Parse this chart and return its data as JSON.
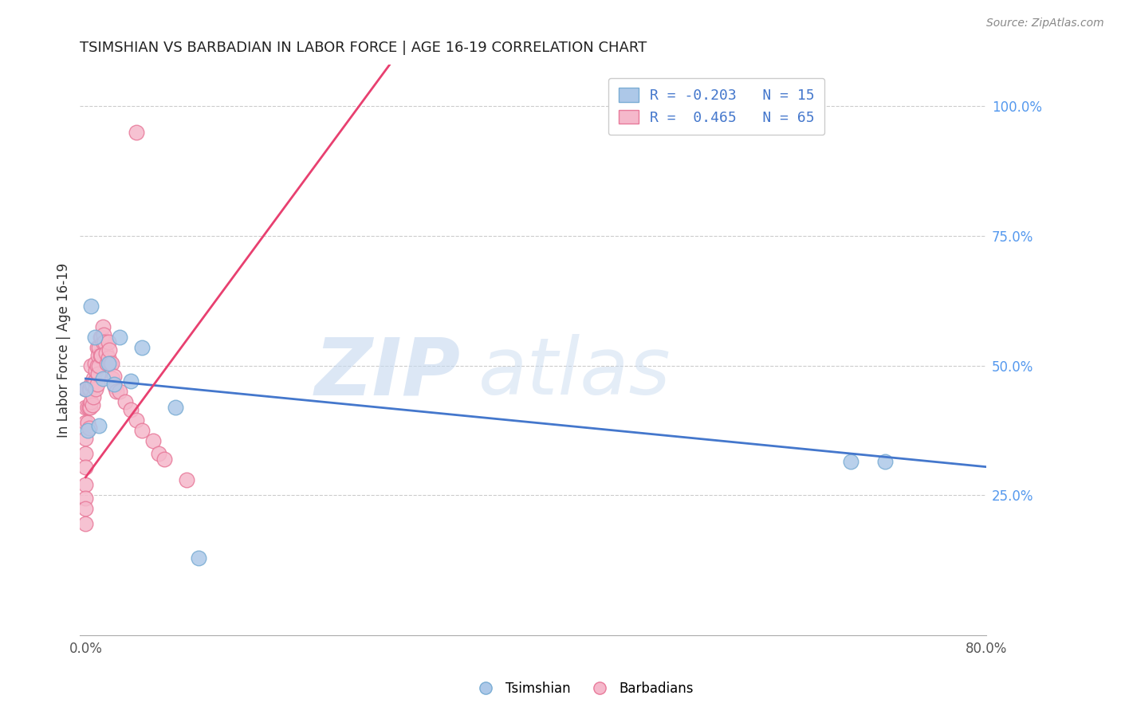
{
  "title": "TSIMSHIAN VS BARBADIAN IN LABOR FORCE | AGE 16-19 CORRELATION CHART",
  "source": "Source: ZipAtlas.com",
  "ylabel": "In Labor Force | Age 16-19",
  "xlim": [
    -0.005,
    0.8
  ],
  "ylim": [
    -0.02,
    1.08
  ],
  "xtick_vals": [
    0.0,
    0.2,
    0.4,
    0.6,
    0.8
  ],
  "xtick_labels": [
    "0.0%",
    "",
    "",
    "",
    "80.0%"
  ],
  "ytick_right_vals": [
    0.25,
    0.5,
    0.75,
    1.0
  ],
  "ytick_right_labels": [
    "25.0%",
    "50.0%",
    "75.0%",
    "100.0%"
  ],
  "legend_text_1": "R = -0.203   N = 15",
  "legend_text_2": "R =  0.465   N = 65",
  "tsimshian_color": "#adc8e8",
  "tsimshian_edge": "#7aadd4",
  "barbadian_color": "#f5b8cb",
  "barbadian_edge": "#e87a9a",
  "trend_blue": "#4477cc",
  "trend_pink": "#e84070",
  "watermark_zip": "ZIP",
  "watermark_atlas": "atlas",
  "tsimshian_x": [
    0.0,
    0.002,
    0.005,
    0.008,
    0.012,
    0.015,
    0.02,
    0.025,
    0.03,
    0.04,
    0.05,
    0.08,
    0.1,
    0.68,
    0.71
  ],
  "tsimshian_y": [
    0.455,
    0.375,
    0.615,
    0.555,
    0.385,
    0.475,
    0.505,
    0.465,
    0.555,
    0.47,
    0.535,
    0.42,
    0.13,
    0.315,
    0.315
  ],
  "barbadian_x": [
    0.0,
    0.0,
    0.0,
    0.0,
    0.0,
    0.0,
    0.0,
    0.0,
    0.0,
    0.0,
    0.001,
    0.002,
    0.002,
    0.003,
    0.003,
    0.003,
    0.004,
    0.004,
    0.005,
    0.005,
    0.005,
    0.006,
    0.006,
    0.007,
    0.007,
    0.008,
    0.008,
    0.009,
    0.009,
    0.01,
    0.01,
    0.01,
    0.011,
    0.011,
    0.012,
    0.012,
    0.013,
    0.013,
    0.014,
    0.014,
    0.015,
    0.015,
    0.016,
    0.017,
    0.018,
    0.019,
    0.02,
    0.02,
    0.021,
    0.022,
    0.023,
    0.024,
    0.025,
    0.026,
    0.027,
    0.03,
    0.035,
    0.04,
    0.045,
    0.05,
    0.06,
    0.065,
    0.07,
    0.09,
    0.045
  ],
  "barbadian_y": [
    0.455,
    0.42,
    0.39,
    0.36,
    0.33,
    0.305,
    0.27,
    0.245,
    0.225,
    0.195,
    0.455,
    0.42,
    0.39,
    0.455,
    0.42,
    0.38,
    0.455,
    0.42,
    0.5,
    0.465,
    0.43,
    0.465,
    0.425,
    0.475,
    0.44,
    0.505,
    0.47,
    0.49,
    0.455,
    0.535,
    0.5,
    0.465,
    0.52,
    0.485,
    0.535,
    0.5,
    0.555,
    0.52,
    0.555,
    0.52,
    0.575,
    0.545,
    0.56,
    0.545,
    0.525,
    0.505,
    0.545,
    0.515,
    0.53,
    0.505,
    0.505,
    0.475,
    0.48,
    0.46,
    0.45,
    0.45,
    0.43,
    0.415,
    0.395,
    0.375,
    0.355,
    0.33,
    0.32,
    0.28,
    0.95
  ],
  "blue_trend_x0": 0.0,
  "blue_trend_y0": 0.475,
  "blue_trend_x1": 0.8,
  "blue_trend_y1": 0.305,
  "pink_trend_x0": 0.0,
  "pink_trend_y0": 0.285,
  "pink_trend_x1": 0.27,
  "pink_trend_y1": 1.08
}
